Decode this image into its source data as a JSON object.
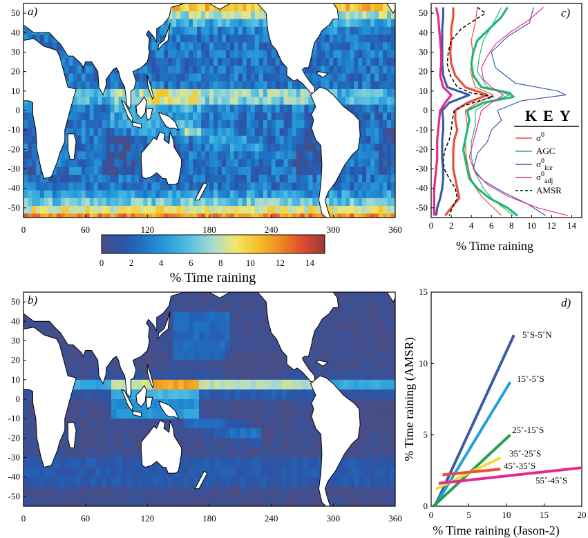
{
  "colors": {
    "ocean_low": "#4a4d84",
    "land": "#ffffff",
    "coast": "#000000",
    "colormap": [
      "#4a4d84",
      "#2a55a9",
      "#1e78c8",
      "#2aa0dc",
      "#5bc1e0",
      "#a9dcd0",
      "#f2e76a",
      "#f4c12a",
      "#ee8a22",
      "#e04a2e",
      "#9b3a3a"
    ]
  },
  "colorbar": {
    "ticks": [
      "0",
      "2",
      "4",
      "6",
      "8",
      "10",
      "12",
      "14"
    ],
    "range": [
      0,
      15
    ],
    "label": "% Time raining"
  },
  "chart_data": [
    {
      "panel": "a)",
      "type": "heatmap",
      "title": "a)",
      "x_ticks": [
        "0",
        "60",
        "120",
        "180",
        "240",
        "300",
        "360"
      ],
      "y_ticks": [
        "50",
        "40",
        "30",
        "20",
        "10",
        "0",
        "-10",
        "-20",
        "-30",
        "-40",
        "-50"
      ],
      "xlim": [
        0,
        360
      ],
      "ylim": [
        -55,
        55
      ],
      "value_range": [
        0,
        15
      ],
      "features": {
        "itcz_max_pct": 9,
        "high_latitude_max_pct": 14,
        "typical_pct": 3
      }
    },
    {
      "panel": "b)",
      "type": "heatmap",
      "title": "b)",
      "x_ticks": [
        "0",
        "60",
        "120",
        "180",
        "240",
        "300",
        "360"
      ],
      "y_ticks": [
        "50",
        "40",
        "30",
        "20",
        "10",
        "0",
        "-10",
        "-20",
        "-30",
        "-40",
        "-50"
      ],
      "xlim": [
        0,
        360
      ],
      "ylim": [
        -55,
        55
      ],
      "value_range": [
        0,
        15
      ],
      "features": {
        "itcz_max_pct": 9,
        "warm_pool_max_pct": 10,
        "typical_pct": 1
      }
    },
    {
      "panel": "c)",
      "type": "line",
      "title": "c)",
      "xlabel": "% Time raining",
      "x_ticks": [
        "0",
        "2",
        "4",
        "6",
        "8",
        "10",
        "12",
        "14"
      ],
      "y_ticks": [
        "50",
        "40",
        "30",
        "20",
        "10",
        "0",
        "-10",
        "-20",
        "-30",
        "-40",
        "-50"
      ],
      "xlim": [
        0,
        15
      ],
      "ylim": [
        -55,
        55
      ],
      "key": {
        "title": "KEY",
        "items": [
          {
            "base": "σ",
            "sup": "0",
            "sub": "",
            "color": "#e8503a",
            "dash": false
          },
          {
            "base": "AGC",
            "sup": "",
            "sub": "",
            "color": "#22b573",
            "dash": false
          },
          {
            "base": "σ",
            "sup": "0",
            "sub": "ice",
            "color": "#3b5ba5",
            "dash": false
          },
          {
            "base": "σ",
            "sup": "0",
            "sub": "adj",
            "color": "#e6298f",
            "dash": false
          },
          {
            "base": "AMSR",
            "sup": "",
            "sub": "",
            "color": "#000000",
            "dash": true
          }
        ]
      },
      "series": [
        {
          "color": "#e8503a",
          "width": 3.2,
          "dash": false,
          "lat": [
            53,
            48,
            42,
            36,
            30,
            24,
            18,
            12,
            8,
            4,
            0,
            -5,
            -10,
            -15,
            -20,
            -25,
            -30,
            -35,
            -40,
            -45,
            -50,
            -54
          ],
          "x": [
            2.2,
            2.2,
            2.0,
            2.0,
            1.9,
            2.0,
            2.4,
            3.4,
            5.6,
            3.6,
            2.4,
            2.4,
            2.6,
            2.3,
            2.2,
            2.2,
            2.2,
            2.4,
            2.6,
            2.8,
            2.0,
            1.4
          ]
        },
        {
          "color": "#e8503a",
          "width": 1.2,
          "dash": false,
          "lat": [
            53,
            45,
            36,
            28,
            20,
            12,
            8,
            4,
            0,
            -8,
            -16,
            -24,
            -32,
            -38,
            -44,
            -50,
            -54
          ],
          "x": [
            4.6,
            4.4,
            4.0,
            4.2,
            3.9,
            4.4,
            6.2,
            4.6,
            3.4,
            3.6,
            3.4,
            3.5,
            3.8,
            4.2,
            5.0,
            6.2,
            7.0
          ]
        },
        {
          "color": "#22b573",
          "width": 3.2,
          "dash": false,
          "lat": [
            53,
            48,
            42,
            36,
            30,
            24,
            18,
            12,
            9,
            7,
            4,
            0,
            -5,
            -10,
            -15,
            -20,
            -25,
            -30,
            -35,
            -40,
            -45,
            -50,
            -54
          ],
          "x": [
            7.6,
            7.0,
            5.8,
            4.6,
            4.2,
            4.0,
            4.2,
            5.0,
            7.8,
            8.2,
            5.2,
            3.6,
            3.8,
            3.6,
            3.4,
            3.2,
            3.4,
            3.6,
            3.8,
            4.6,
            5.8,
            7.6,
            8.6
          ]
        },
        {
          "color": "#22b573",
          "width": 1.2,
          "dash": false,
          "lat": [
            53,
            45,
            36,
            28,
            20,
            12,
            8,
            4,
            0,
            -8,
            -16,
            -24,
            -32,
            -40,
            -46,
            -50,
            -54
          ],
          "x": [
            7.0,
            6.2,
            5.2,
            4.8,
            4.6,
            5.6,
            7.8,
            5.6,
            4.4,
            4.4,
            4.0,
            4.0,
            4.4,
            5.2,
            6.2,
            7.2,
            8.2
          ]
        },
        {
          "color": "#3b5ba5",
          "width": 3.2,
          "dash": false,
          "lat": [
            53,
            48,
            42,
            36,
            30,
            24,
            18,
            12,
            8,
            4,
            0,
            -5,
            -10,
            -15,
            -20,
            -25,
            -30,
            -35,
            -40,
            -45,
            -50,
            -54
          ],
          "x": [
            1.2,
            1.2,
            1.1,
            1.1,
            1.1,
            1.1,
            1.2,
            1.6,
            3.8,
            1.8,
            1.1,
            1.2,
            1.2,
            1.1,
            1.1,
            1.1,
            1.2,
            1.2,
            1.1,
            0.9,
            0.6,
            0.5
          ]
        },
        {
          "color": "#3b5ba5",
          "width": 1.2,
          "dash": false,
          "lat": [
            53,
            45,
            38,
            30,
            22,
            14,
            10,
            8,
            5,
            0,
            -5,
            -10,
            -16,
            -22,
            -30,
            -36,
            -42,
            -48,
            -54
          ],
          "x": [
            10.2,
            9.8,
            7.6,
            6.0,
            6.4,
            8.4,
            12.6,
            13.4,
            9.0,
            6.6,
            7.0,
            6.0,
            5.6,
            4.6,
            4.2,
            5.2,
            7.2,
            9.6,
            11.4
          ]
        },
        {
          "color": "#e6298f",
          "width": 3.2,
          "dash": false,
          "lat": [
            53,
            48,
            42,
            36,
            30,
            24,
            18,
            12,
            8,
            4,
            0,
            -5,
            -10,
            -15,
            -20,
            -25,
            -30,
            -35,
            -40,
            -45,
            -50,
            -54
          ],
          "x": [
            0.5,
            0.7,
            0.8,
            0.9,
            1.0,
            1.0,
            0.9,
            1.2,
            2.0,
            1.4,
            0.9,
            0.8,
            0.7,
            0.6,
            0.6,
            0.6,
            0.5,
            0.4,
            0.3,
            0.3,
            0.3,
            0.3
          ]
        },
        {
          "color": "#e6298f",
          "width": 1.2,
          "dash": false,
          "lat": [
            53,
            46,
            40,
            34,
            28,
            22,
            16,
            12,
            8,
            4,
            0,
            -8,
            -16,
            -24,
            -32,
            -38,
            -44,
            -50,
            -54
          ],
          "x": [
            11.2,
            9.6,
            7.8,
            6.4,
            5.6,
            5.0,
            5.2,
            6.0,
            7.2,
            6.0,
            5.0,
            4.6,
            4.2,
            3.8,
            4.4,
            5.6,
            7.6,
            10.6,
            13.6
          ]
        },
        {
          "color": "#000000",
          "width": 1.5,
          "dash": true,
          "lat": [
            53,
            50,
            46,
            42,
            36,
            30,
            24,
            18,
            12,
            9,
            7,
            5,
            2,
            0,
            -5,
            -10,
            -15,
            -20,
            -25,
            -30,
            -35,
            -40,
            -45,
            -50,
            -54
          ],
          "x": [
            4.6,
            5.4,
            4.2,
            3.0,
            2.0,
            1.7,
            1.6,
            1.9,
            2.6,
            4.0,
            6.2,
            4.8,
            3.0,
            2.3,
            2.1,
            2.0,
            1.8,
            1.4,
            1.2,
            1.3,
            1.8,
            2.4,
            2.6,
            2.1,
            1.8
          ]
        }
      ]
    },
    {
      "panel": "d)",
      "type": "line",
      "title": "d)",
      "xlabel": "% Time raining (Jason-2)",
      "ylabel": "% Time raining (AMSR)",
      "x_ticks": [
        "0",
        "5",
        "10",
        "15",
        "20"
      ],
      "y_ticks": [
        "0",
        "5",
        "10",
        "15"
      ],
      "xlim": [
        0,
        20
      ],
      "ylim": [
        0,
        15
      ],
      "series": [
        {
          "name": "5˚S-5˚N",
          "color": "#3b5ba5",
          "x": [
            0.5,
            11.0
          ],
          "y": [
            0,
            12.0
          ]
        },
        {
          "name": "15˚-5˚S",
          "color": "#1fa3d8",
          "x": [
            0.5,
            10.5
          ],
          "y": [
            0,
            8.7
          ]
        },
        {
          "name": "25˚-15˚S",
          "color": "#22a04b",
          "x": [
            0.3,
            10.5
          ],
          "y": [
            0,
            5.0
          ]
        },
        {
          "name": "35˚-25˚S",
          "color": "#f1dc3a",
          "x": [
            0.6,
            9.2
          ],
          "y": [
            1.2,
            3.4
          ]
        },
        {
          "name": "45˚-35˚S",
          "color": "#e8503a",
          "x": [
            1.5,
            9.2
          ],
          "y": [
            2.2,
            2.6
          ]
        },
        {
          "name": "55˚-45˚S",
          "color": "#e6298f",
          "x": [
            1.0,
            20.0
          ],
          "y": [
            1.6,
            2.7
          ]
        }
      ]
    }
  ]
}
